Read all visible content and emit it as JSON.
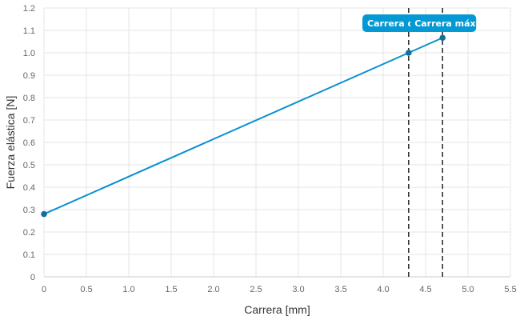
{
  "chart_data": {
    "type": "line",
    "xlabel": "Carrera [mm]",
    "ylabel": "Fuerza elástica [N]",
    "xlim": [
      0,
      5.5
    ],
    "ylim": [
      0,
      1.2
    ],
    "xticks": [
      "0",
      "0.5",
      "1.0",
      "1.5",
      "2.0",
      "2.5",
      "3.0",
      "3.5",
      "4.0",
      "4.5",
      "5.0",
      "5.5"
    ],
    "yticks": [
      "0",
      "0.1",
      "0.2",
      "0.3",
      "0.4",
      "0.5",
      "0.6",
      "0.7",
      "0.8",
      "0.9",
      "1.0",
      "1.1",
      "1.2"
    ],
    "grid": true,
    "series": [
      {
        "x": [
          0,
          4.3,
          4.7
        ],
        "y": [
          0.28,
          1.0,
          1.067
        ],
        "color": "#0b8fd0"
      }
    ],
    "markers": [
      {
        "label": "Carrera d",
        "x": 4.3
      },
      {
        "label": "Carrera máx.",
        "x": 4.7
      }
    ],
    "colors": {
      "line": "#0b8fd0",
      "point": "#0f6f9f",
      "tag": "#0599d4",
      "marker_line": "#333333",
      "grid": "#e6e6e6"
    }
  }
}
